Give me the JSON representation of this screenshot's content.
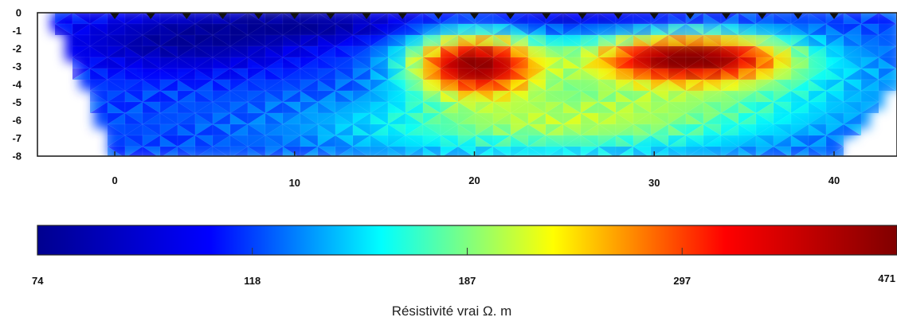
{
  "chart_data": {
    "type": "heatmap",
    "title": "",
    "xlabel": "",
    "ylabel": "",
    "x_ticks": [
      0,
      10,
      20,
      30,
      40
    ],
    "y_ticks": [
      0,
      -1,
      -2,
      -3,
      -4,
      -5,
      -6,
      -7,
      -8
    ],
    "xlim": [
      -4.3,
      43.5
    ],
    "ylim": [
      -8,
      0
    ],
    "electrode_positions": [
      0,
      2,
      4,
      6,
      8,
      10,
      12,
      14,
      16,
      18,
      20,
      22,
      24,
      26,
      28,
      30,
      32,
      34,
      36,
      38,
      40
    ],
    "anomalies": [
      {
        "x_center": 20,
        "depth_center": -2.9,
        "x_radius": 3.3,
        "depth_radius": 1.6,
        "resistivity": 471
      },
      {
        "x_center": 32,
        "depth_center": -2.5,
        "x_radius": 5.0,
        "depth_radius": 1.2,
        "resistivity": 440
      }
    ],
    "colorbar": {
      "label": "Résistivité vrai Ω. m",
      "tick_labels": [
        "74",
        "118",
        "187",
        "297",
        "471"
      ],
      "min": 74,
      "max": 471,
      "scale": "log",
      "colormap": [
        "#00008f",
        "#0000ff",
        "#00ffff",
        "#ffff00",
        "#ff0000",
        "#800000"
      ]
    }
  }
}
